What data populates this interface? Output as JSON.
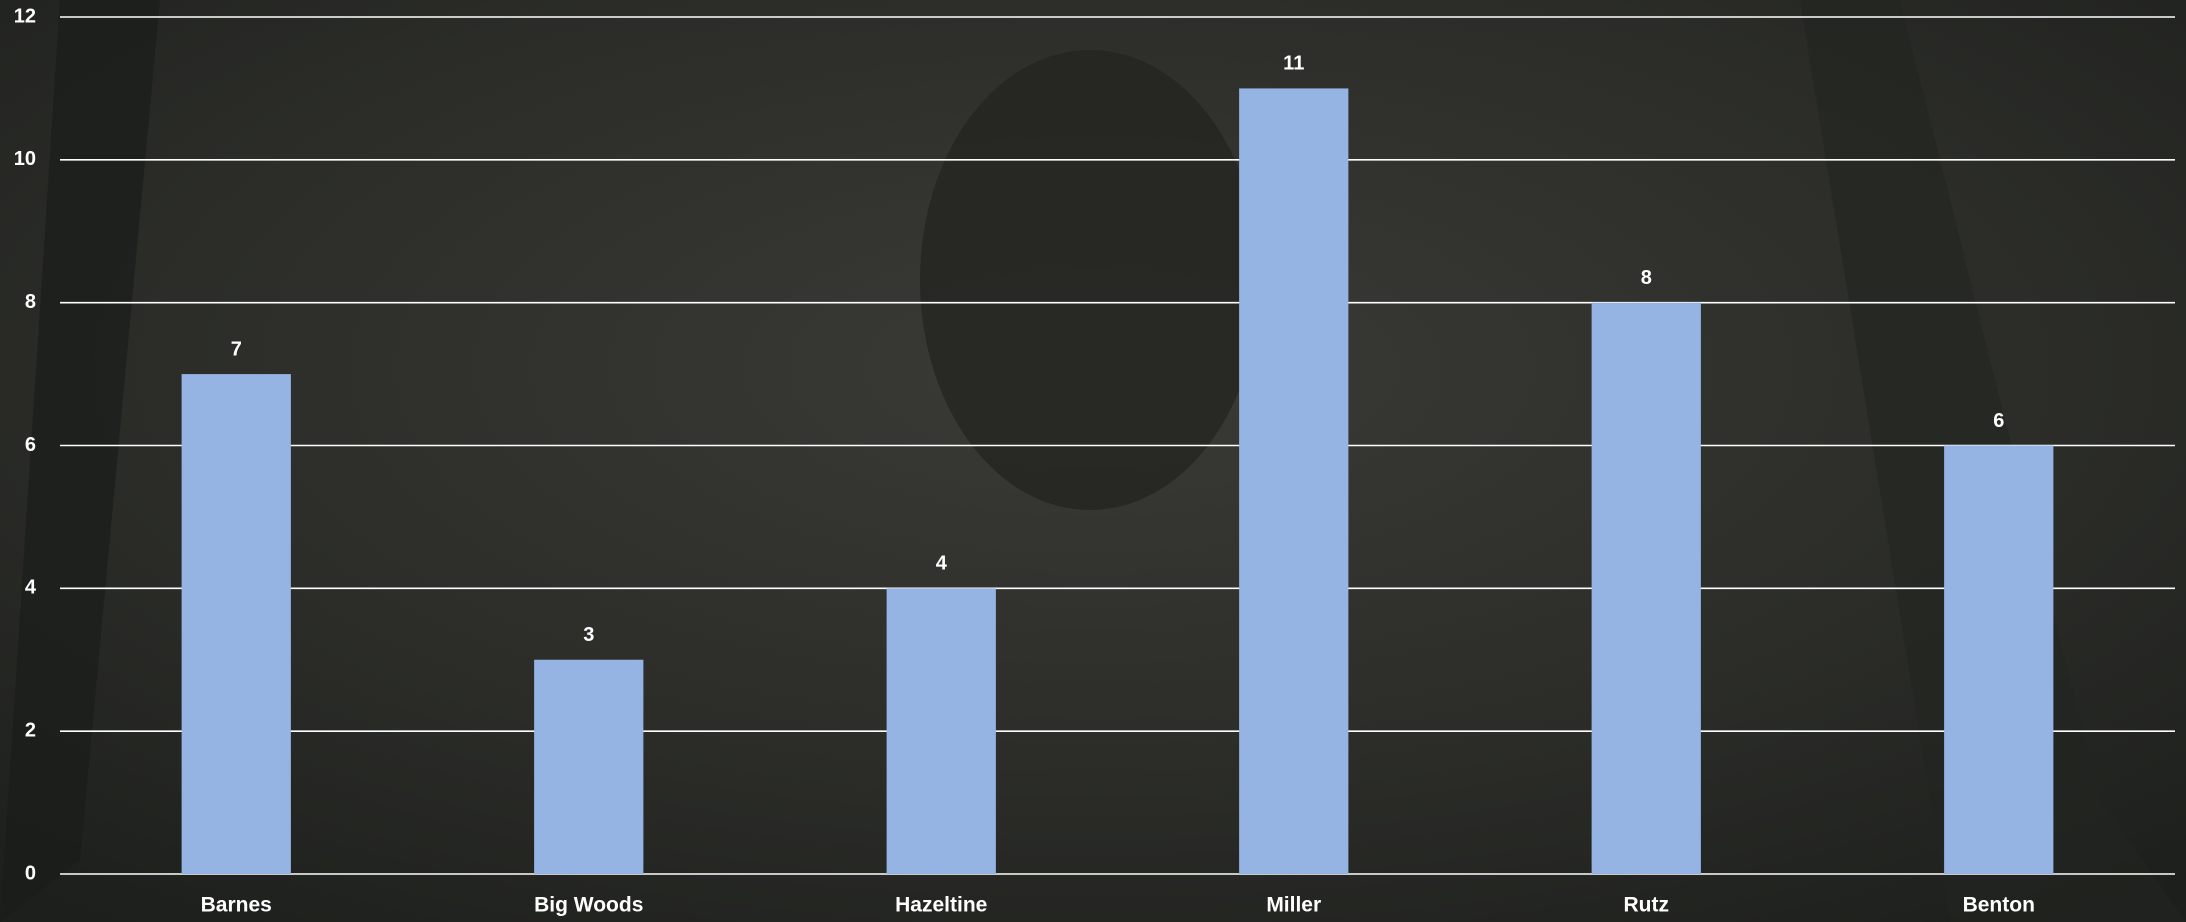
{
  "chart_data": {
    "type": "bar",
    "categories": [
      "Barnes",
      "Big Woods",
      "Hazeltine",
      "Miller",
      "Rutz",
      "Benton"
    ],
    "values": [
      7,
      3,
      4,
      11,
      8,
      6
    ],
    "color": "#95b3e3",
    "ylim": [
      0,
      12
    ],
    "yticks": [
      0,
      2,
      4,
      6,
      8,
      10,
      12
    ],
    "grid": true
  }
}
